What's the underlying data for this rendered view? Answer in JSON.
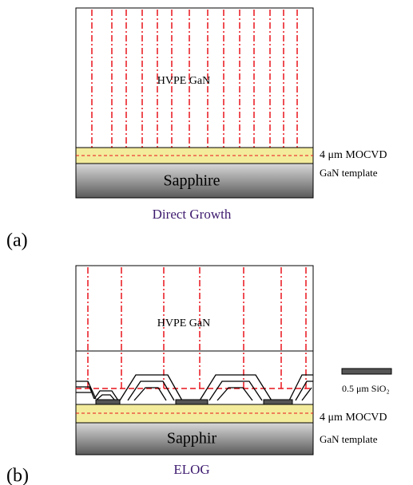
{
  "panel_a": {
    "layer_label": "HVPE GaN",
    "template_label_1": "4 μm MOCVD",
    "template_label_2": "GaN template",
    "substrate_label": "Sapphire",
    "caption": "Direct Growth",
    "tag": "(a)"
  },
  "panel_b": {
    "layer_label": "HVPE GaN",
    "mask_legend": "0.5 μm SiO₂",
    "template_label_1": "4 μm MOCVD",
    "template_label_2": "GaN template",
    "substrate_label": "Sapphir",
    "caption": "ELOG",
    "tag": "(b)"
  }
}
